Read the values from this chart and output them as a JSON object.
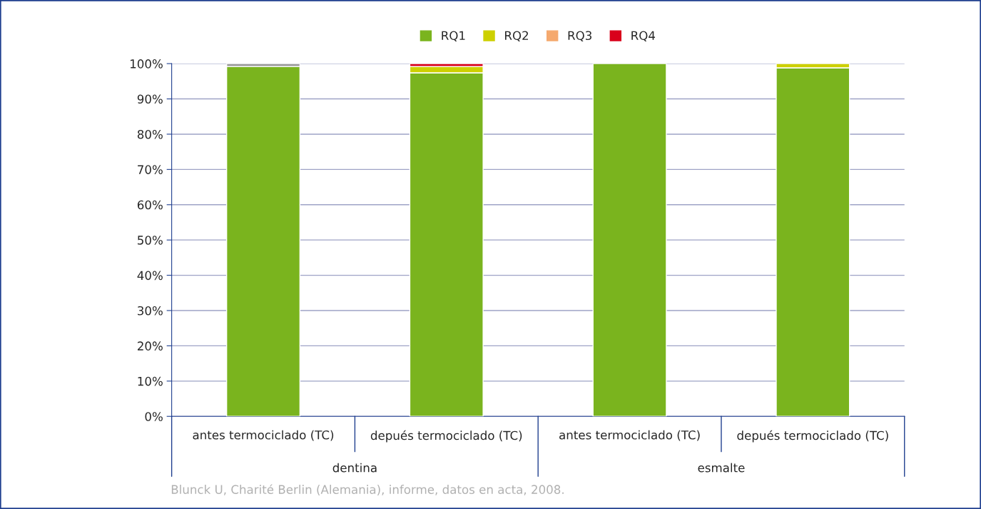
{
  "chart_data": {
    "type": "bar",
    "stacked": true,
    "categories": [
      "antes termociclado (TC)",
      "depués termociclado (TC)",
      "antes termociclado (TC)",
      "depués termociclado (TC)"
    ],
    "series": [
      {
        "name": "RQ1",
        "color": "#7ab41e",
        "values": [
          99.2,
          97.4,
          100,
          98.8
        ]
      },
      {
        "name": "RQ2",
        "color": "#cdd000",
        "values": [
          null,
          1.8,
          null,
          1.2
        ]
      },
      {
        "name": "RQ3",
        "color": "#f5a96e",
        "values": [
          null,
          null,
          null,
          null
        ]
      },
      {
        "name": "RQ4",
        "color": "#d9001b",
        "values": [
          null,
          0.8,
          null,
          null
        ]
      },
      {
        "color": "#9a9a9a",
        "values": [
          0.8,
          null,
          null,
          null
        ]
      }
    ],
    "ylim": [
      0,
      100
    ],
    "yticks": [
      {
        "value": 0,
        "label": "0%"
      },
      {
        "value": 10,
        "label": "10%"
      },
      {
        "value": 20,
        "label": "20%"
      },
      {
        "value": 30,
        "label": "30%"
      },
      {
        "value": 40,
        "label": "40%"
      },
      {
        "value": 50,
        "label": "50%"
      },
      {
        "value": 60,
        "label": "60%"
      },
      {
        "value": 70,
        "label": "70%"
      },
      {
        "value": 80,
        "label": "80%"
      },
      {
        "value": 90,
        "label": "90%"
      },
      {
        "value": 100,
        "label": "100%"
      }
    ],
    "grid": "y",
    "legend": "top",
    "annotations": [
      "dentina",
      "esmalte",
      "Blunck U, Charité Berlin (Alemania), informe, datos en acta, 2008."
    ]
  }
}
